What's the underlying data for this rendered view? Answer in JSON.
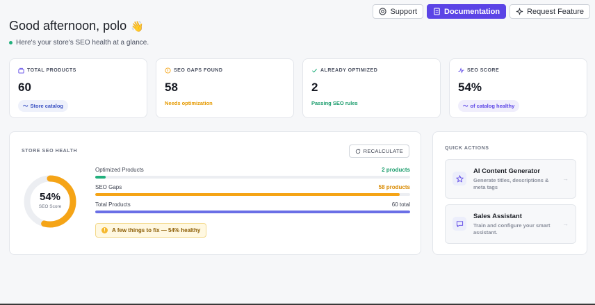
{
  "topbar": {
    "support_label": "Support",
    "docs_label": "Documentation",
    "request_label": "Request Feature"
  },
  "greeting": {
    "title": "Good afternoon, polo",
    "emoji": "👋",
    "subtitle": "Here's your store's SEO health at a glance."
  },
  "stats": [
    {
      "label": "TOTAL PRODUCTS",
      "value": "60",
      "sub": "Store catalog",
      "icon": "box-icon"
    },
    {
      "label": "SEO GAPS FOUND",
      "value": "58",
      "sub": "Needs optimization",
      "icon": "alert-circle-icon"
    },
    {
      "label": "ALREADY OPTIMIZED",
      "value": "2",
      "sub": "Passing SEO rules",
      "icon": "check-icon"
    },
    {
      "label": "SEO SCORE",
      "value": "54%",
      "sub": "of catalog healthy",
      "icon": "activity-icon"
    }
  ],
  "health": {
    "title": "STORE SEO HEALTH",
    "recalc_label": "RECALCULATE",
    "score": "54%",
    "score_fraction": 0.54,
    "score_label": "SEO Score",
    "bars": [
      {
        "label": "Optimized Products",
        "value_text": "2 products",
        "fraction": 0.033,
        "color": "#22b07d",
        "text_color": "#1a9c6c"
      },
      {
        "label": "SEO Gaps",
        "value_text": "58 products",
        "fraction": 0.967,
        "color": "#f5a416",
        "text_color": "#d98a00"
      },
      {
        "label": "Total Products",
        "value_text": "60 total",
        "fraction": 1.0,
        "color": "#6a6fe6",
        "text_color": "#3d4250"
      }
    ],
    "warning": "A few things to fix — 54% healthy"
  },
  "quick_actions": {
    "title": "QUICK ACTIONS",
    "items": [
      {
        "name": "AI Content Generator",
        "desc": "Generate titles, descriptions & meta tags",
        "icon": "star-icon"
      },
      {
        "name": "Sales Assistant",
        "desc": "Train and configure your smart assistant.",
        "icon": "chat-icon"
      }
    ]
  },
  "colors": {
    "accent": "#5b44e6",
    "green": "#22b07d",
    "orange": "#f5a416",
    "indigo": "#6a6fe6"
  }
}
